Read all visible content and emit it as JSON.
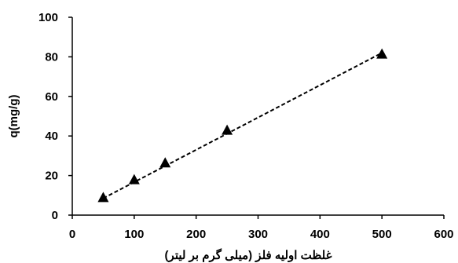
{
  "chart_data": {
    "type": "scatter",
    "title": "",
    "xlabel": "غلظت اولیه فلز (میلی گرم بر لیتر)",
    "ylabel": "q(mg/g)",
    "xlim": [
      0,
      600
    ],
    "ylim": [
      0,
      100
    ],
    "xticks": [
      "0",
      "100",
      "200",
      "300",
      "400",
      "500",
      "600"
    ],
    "yticks": [
      "0",
      "20",
      "40",
      "60",
      "80",
      "100"
    ],
    "grid": false,
    "legend": "none",
    "marker": "triangle",
    "colors": {
      "marker": "#000000",
      "trendline": "#000000"
    },
    "trendline": {
      "style": "dashed",
      "x": [
        50,
        500
      ],
      "y": [
        8.5,
        82
      ]
    },
    "series": [
      {
        "x": [
          50,
          100,
          150,
          250,
          500
        ],
        "y": [
          9,
          18,
          26.5,
          43,
          81.5
        ]
      }
    ]
  }
}
